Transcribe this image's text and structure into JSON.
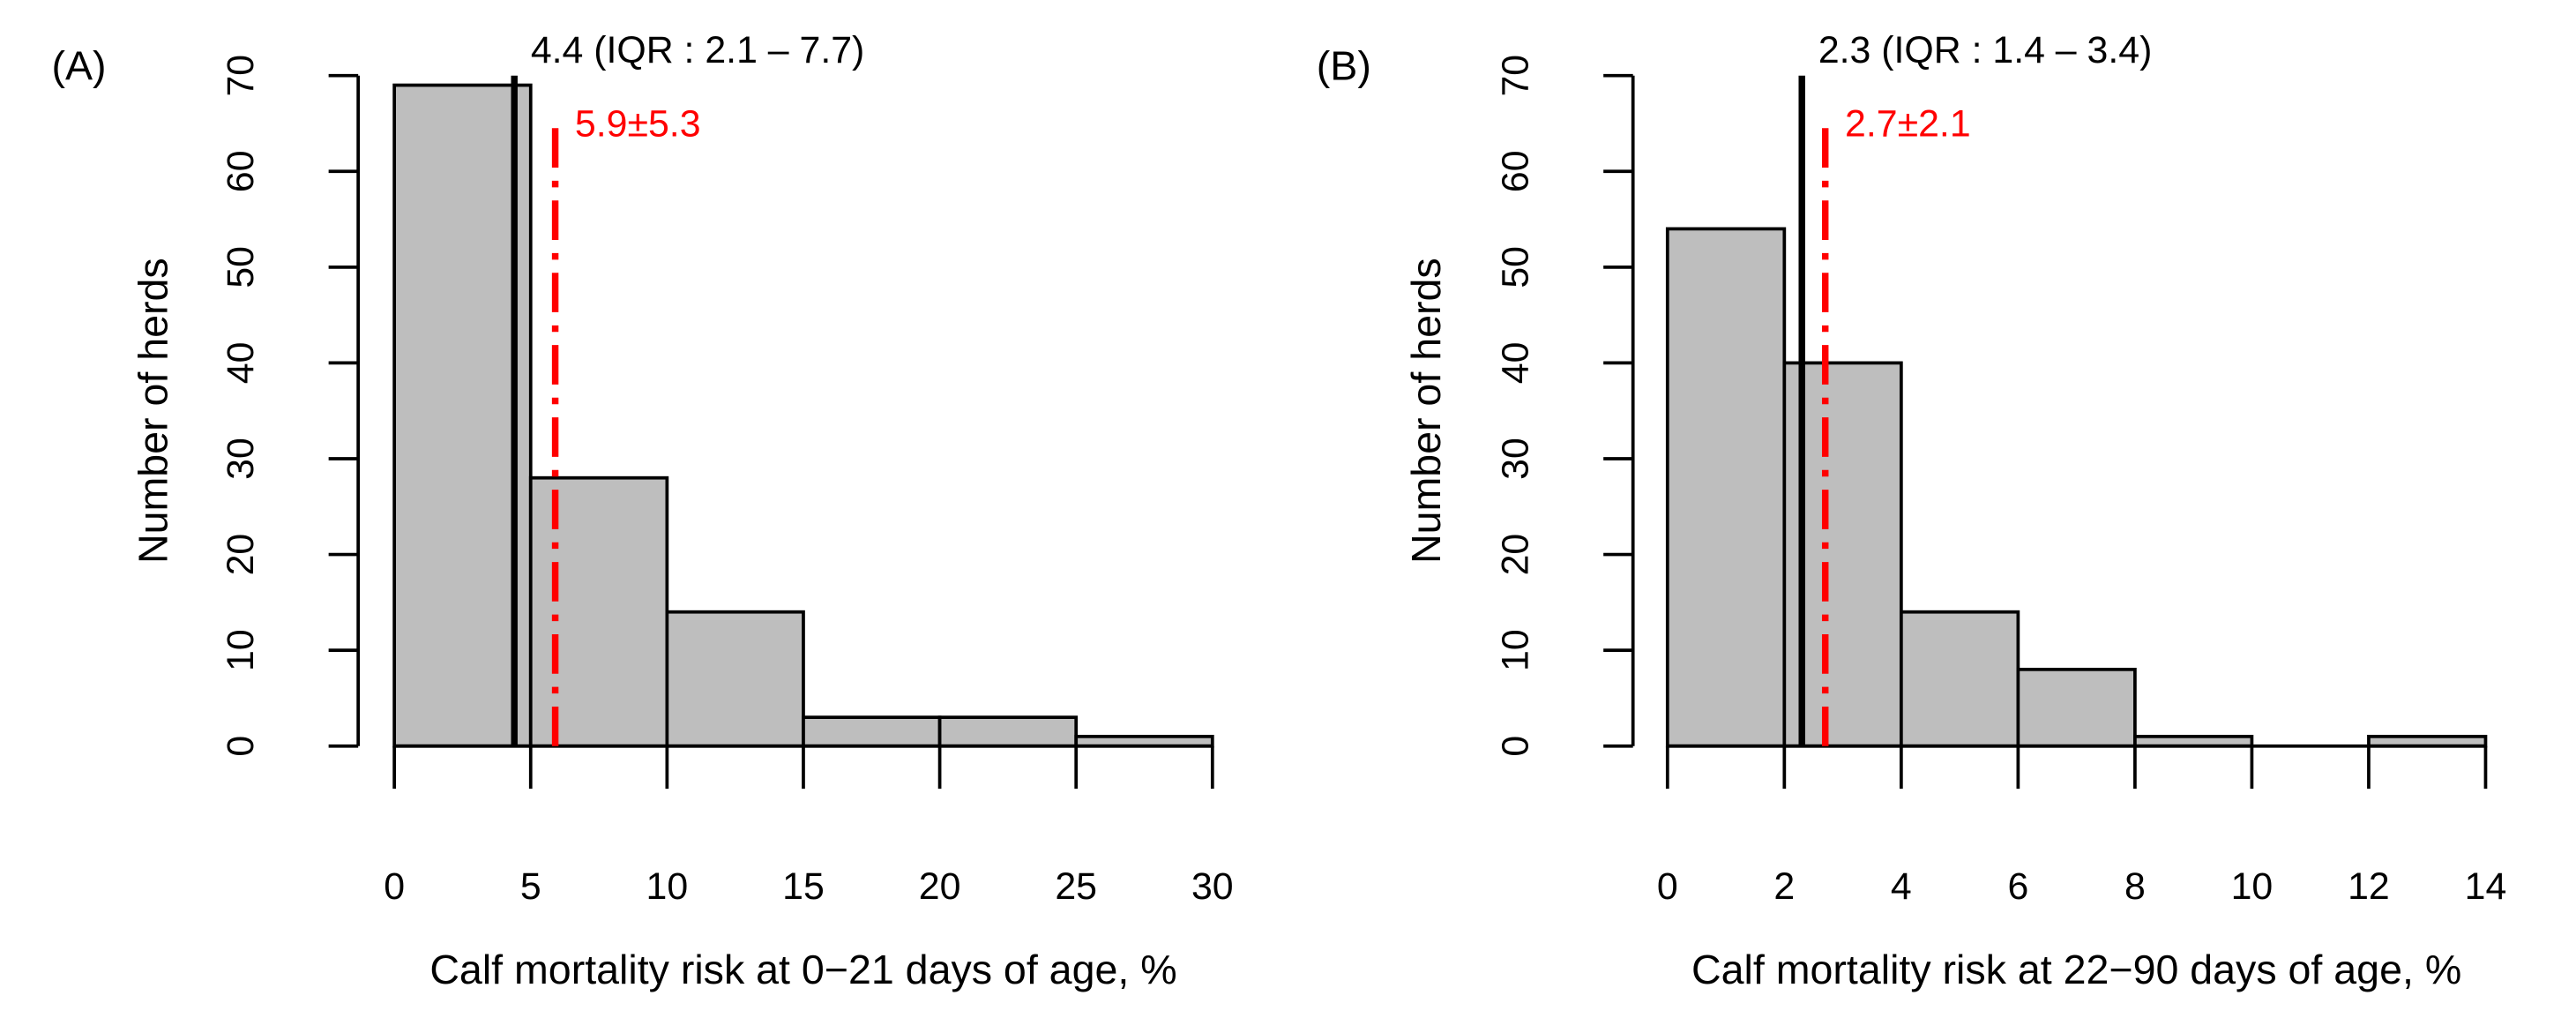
{
  "chart_data": [
    {
      "type": "histogram",
      "panel_label": "(A)",
      "y_label": "Number of herds",
      "x_label": "Calf mortality risk at 0−21 days of age, %",
      "bins": [
        0,
        5,
        10,
        15,
        20,
        25,
        30
      ],
      "values": [
        69,
        28,
        14,
        3,
        3,
        1
      ],
      "color": "#bebebe",
      "xlim": [
        0,
        30
      ],
      "ylim": [
        0,
        70
      ],
      "xticks": [
        0,
        5,
        10,
        15,
        20,
        25,
        30
      ],
      "yticks": [
        0,
        10,
        20,
        30,
        40,
        50,
        60,
        70
      ],
      "median": 4.4,
      "median_label": "4.4 (IQR : 2.1 – 7.7)",
      "median_color": "#000000",
      "mean": 5.9,
      "mean_label": "5.9±5.3",
      "mean_color": "#ff0000"
    },
    {
      "type": "histogram",
      "panel_label": "(B)",
      "y_label": "Number of herds",
      "x_label": "Calf mortality risk at 22−90 days of age, %",
      "bins": [
        0,
        2,
        4,
        6,
        8,
        10,
        12,
        14
      ],
      "values": [
        54,
        40,
        14,
        8,
        1,
        0,
        1
      ],
      "color": "#bebebe",
      "xlim": [
        0,
        14
      ],
      "ylim": [
        0,
        70
      ],
      "xticks": [
        0,
        2,
        4,
        6,
        8,
        10,
        12,
        14
      ],
      "yticks": [
        0,
        10,
        20,
        30,
        40,
        50,
        60,
        70
      ],
      "median": 2.3,
      "median_label": "2.3 (IQR : 1.4 – 3.4)",
      "median_color": "#000000",
      "mean": 2.7,
      "mean_label": "2.7±2.1",
      "mean_color": "#ff0000"
    }
  ]
}
